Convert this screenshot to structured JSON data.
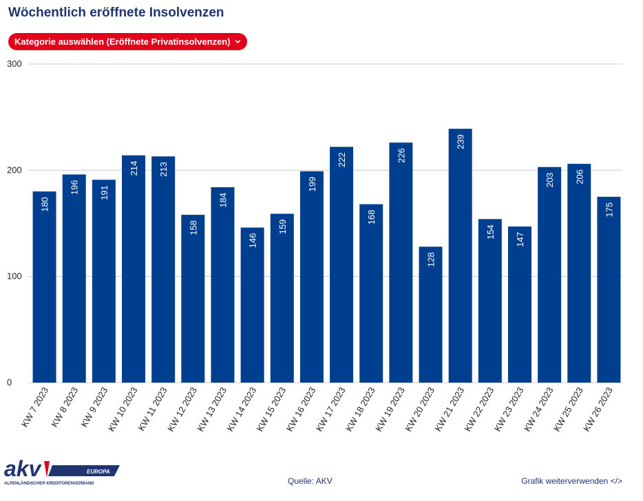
{
  "title": "Wöchentlich eröffnete Insolvenzen",
  "dropdown": {
    "label": "Kategorie auswählen (Eröffnete Privatinsolvenzen)",
    "icon": "chevron-down-icon"
  },
  "footer": {
    "source": "Quelle: AKV",
    "reuse": "Grafik weiterverwenden </>"
  },
  "logo": {
    "text": "akv",
    "tag": "EUROPA",
    "subtitle": "ALPENLÄNDISCHER KREDITORENVERBAND"
  },
  "colors": {
    "bar": "#003f8f",
    "title": "#1f3470",
    "accent": "#e3001b",
    "grid": "#cccccc"
  },
  "chart_data": {
    "type": "bar",
    "categories": [
      "KW 7 2023",
      "KW 8 2023",
      "KW 9 2023",
      "KW 10 2023",
      "KW 11 2023",
      "KW 12 2023",
      "KW 13 2023",
      "KW 14 2023",
      "KW 15 2023",
      "KW 16 2023",
      "KW 17 2023",
      "KW 18 2023",
      "KW 19 2023",
      "KW 20 2023",
      "KW 21 2023",
      "KW 22 2023",
      "KW 23 2023",
      "KW 24 2023",
      "KW 25 2023",
      "KW 26 2023"
    ],
    "values": [
      180,
      196,
      191,
      214,
      213,
      158,
      184,
      146,
      159,
      199,
      222,
      168,
      226,
      128,
      239,
      154,
      147,
      203,
      206,
      175
    ],
    "ylim": [
      0,
      300
    ],
    "yticks": [
      0,
      100,
      200,
      300
    ],
    "grid": true,
    "data_labels": "inside-top-vertical"
  }
}
